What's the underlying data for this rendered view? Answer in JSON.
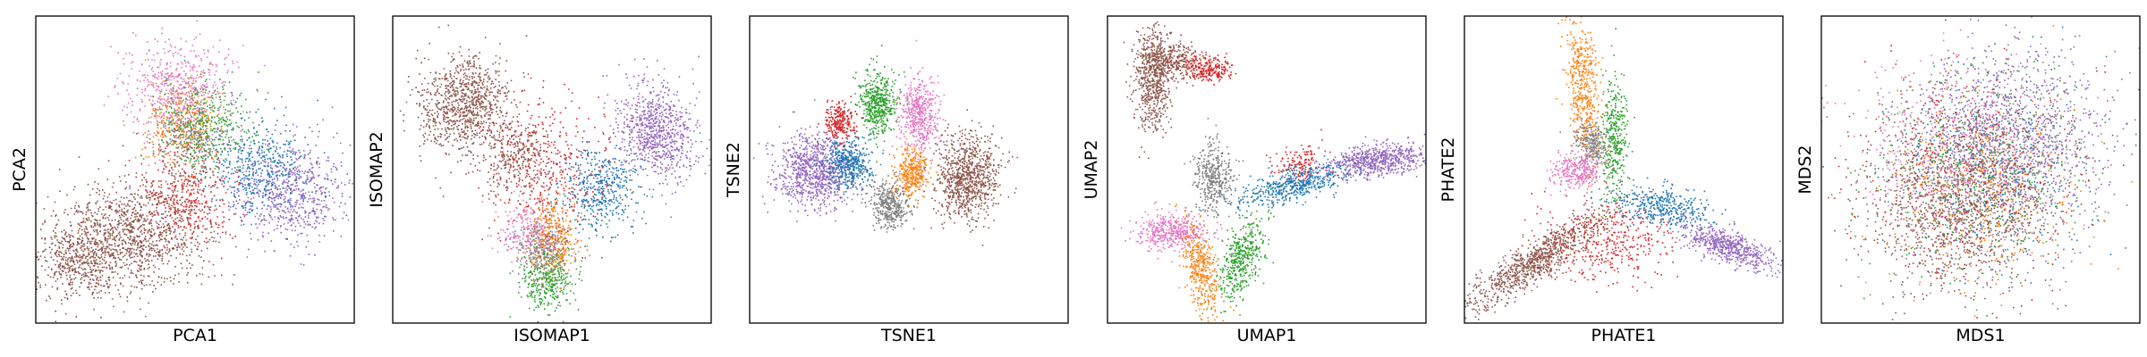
{
  "chart_data": [
    {
      "type": "scatter",
      "xlabel": "PCA1",
      "ylabel": "PCA2",
      "xlim": [
        0,
        100
      ],
      "ylim": [
        0,
        100
      ],
      "grid": false,
      "legend": "none",
      "series": [
        {
          "color": "#8c564b",
          "clusters": [
            {
              "cx": 28,
              "cy": 28,
              "sx": 13,
              "sy": 9,
              "n": 1400,
              "rot": 20
            },
            {
              "cx": 12,
              "cy": 20,
              "sx": 6,
              "sy": 6,
              "n": 250
            }
          ]
        },
        {
          "color": "#e377c2",
          "clusters": [
            {
              "cx": 45,
              "cy": 76,
              "sx": 8,
              "sy": 8,
              "n": 600
            }
          ]
        },
        {
          "color": "#9467bd",
          "clusters": [
            {
              "cx": 80,
              "cy": 43,
              "sx": 9,
              "sy": 8,
              "n": 650,
              "rot": -20
            }
          ]
        },
        {
          "color": "#1f77b4",
          "clusters": [
            {
              "cx": 70,
              "cy": 50,
              "sx": 8,
              "sy": 8,
              "n": 450
            }
          ]
        },
        {
          "color": "#2ca02c",
          "clusters": [
            {
              "cx": 53,
              "cy": 65,
              "sx": 7,
              "sy": 7,
              "n": 400
            }
          ]
        },
        {
          "color": "#d62728",
          "clusters": [
            {
              "cx": 47,
              "cy": 42,
              "sx": 7,
              "sy": 8,
              "n": 350
            }
          ]
        },
        {
          "color": "#ff7f0e",
          "clusters": [
            {
              "cx": 45,
              "cy": 65,
              "sx": 6,
              "sy": 7,
              "n": 300
            }
          ]
        },
        {
          "color": "#7f7f7f",
          "clusters": [
            {
              "cx": 48,
              "cy": 60,
              "sx": 6,
              "sy": 6,
              "n": 250
            }
          ]
        }
      ]
    },
    {
      "type": "scatter",
      "xlabel": "ISOMAP1",
      "ylabel": "ISOMAP2",
      "xlim": [
        0,
        100
      ],
      "ylim": [
        0,
        100
      ],
      "grid": false,
      "legend": "none",
      "series": [
        {
          "color": "#8c564b",
          "clusters": [
            {
              "cx": 22,
              "cy": 72,
              "sx": 7,
              "sy": 8,
              "n": 900,
              "rot": -30
            },
            {
              "cx": 38,
              "cy": 55,
              "sx": 6,
              "sy": 6,
              "n": 300
            }
          ]
        },
        {
          "color": "#9467bd",
          "clusters": [
            {
              "cx": 82,
              "cy": 62,
              "sx": 6,
              "sy": 8,
              "n": 800,
              "rot": 25
            }
          ]
        },
        {
          "color": "#1f77b4",
          "clusters": [
            {
              "cx": 65,
              "cy": 43,
              "sx": 6,
              "sy": 7,
              "n": 450
            }
          ]
        },
        {
          "color": "#2ca02c",
          "clusters": [
            {
              "cx": 48,
              "cy": 15,
              "sx": 4,
              "sy": 5,
              "n": 350
            }
          ]
        },
        {
          "color": "#ff7f0e",
          "clusters": [
            {
              "cx": 50,
              "cy": 28,
              "sx": 4,
              "sy": 6,
              "n": 350
            }
          ]
        },
        {
          "color": "#7f7f7f",
          "clusters": [
            {
              "cx": 47,
              "cy": 24,
              "sx": 4,
              "sy": 5,
              "n": 250
            }
          ]
        },
        {
          "color": "#d62728",
          "clusters": [
            {
              "cx": 48,
              "cy": 50,
              "sx": 10,
              "sy": 11,
              "n": 400
            }
          ]
        },
        {
          "color": "#e377c2",
          "clusters": [
            {
              "cx": 42,
              "cy": 30,
              "sx": 5,
              "sy": 5,
              "n": 200
            }
          ]
        }
      ]
    },
    {
      "type": "scatter",
      "xlabel": "TSNE1",
      "ylabel": "TSNE2",
      "xlim": [
        0,
        100
      ],
      "ylim": [
        0,
        100
      ],
      "grid": false,
      "legend": "none",
      "series": [
        {
          "color": "#9467bd",
          "clusters": [
            {
              "cx": 20,
              "cy": 50,
              "sx": 6,
              "sy": 6,
              "n": 900
            }
          ]
        },
        {
          "color": "#8c564b",
          "clusters": [
            {
              "cx": 68,
              "cy": 48,
              "sx": 5,
              "sy": 7,
              "n": 900
            }
          ]
        },
        {
          "color": "#2ca02c",
          "clusters": [
            {
              "cx": 40,
              "cy": 72,
              "sx": 3,
              "sy": 5,
              "n": 500
            }
          ]
        },
        {
          "color": "#e377c2",
          "clusters": [
            {
              "cx": 53,
              "cy": 68,
              "sx": 3,
              "sy": 6,
              "n": 500
            }
          ]
        },
        {
          "color": "#1f77b4",
          "clusters": [
            {
              "cx": 31,
              "cy": 52,
              "sx": 3.5,
              "sy": 4,
              "n": 450
            }
          ]
        },
        {
          "color": "#7f7f7f",
          "clusters": [
            {
              "cx": 44,
              "cy": 39,
              "sx": 3,
              "sy": 4,
              "n": 400
            }
          ]
        },
        {
          "color": "#ff7f0e",
          "clusters": [
            {
              "cx": 51,
              "cy": 49,
              "sx": 2.5,
              "sy": 4,
              "n": 350
            }
          ]
        },
        {
          "color": "#d62728",
          "clusters": [
            {
              "cx": 28,
              "cy": 66,
              "sx": 2.5,
              "sy": 3,
              "n": 250
            }
          ]
        }
      ]
    },
    {
      "type": "scatter",
      "xlabel": "UMAP1",
      "ylabel": "UMAP2",
      "xlim": [
        0,
        100
      ],
      "ylim": [
        0,
        100
      ],
      "grid": false,
      "legend": "none",
      "series": [
        {
          "color": "#8c564b",
          "clusters": [
            {
              "cx": 14,
              "cy": 80,
              "sx": 3,
              "sy": 9,
              "n": 600
            },
            {
              "cx": 20,
              "cy": 86,
              "sx": 5,
              "sy": 3,
              "n": 300
            }
          ]
        },
        {
          "color": "#d62728",
          "clusters": [
            {
              "cx": 31,
              "cy": 83,
              "sx": 4,
              "sy": 2,
              "n": 250
            },
            {
              "cx": 60,
              "cy": 52,
              "sx": 4,
              "sy": 3,
              "n": 150
            }
          ]
        },
        {
          "color": "#9467bd",
          "clusters": [
            {
              "cx": 85,
              "cy": 53,
              "sx": 8,
              "sy": 2.5,
              "n": 700,
              "rot": 8
            }
          ]
        },
        {
          "color": "#1f77b4",
          "clusters": [
            {
              "cx": 58,
              "cy": 45,
              "sx": 9,
              "sy": 2.5,
              "n": 500,
              "rot": 15
            }
          ]
        },
        {
          "color": "#e377c2",
          "clusters": [
            {
              "cx": 20,
              "cy": 30,
              "sx": 6,
              "sy": 3,
              "n": 450
            }
          ]
        },
        {
          "color": "#7f7f7f",
          "clusters": [
            {
              "cx": 33,
              "cy": 48,
              "sx": 3,
              "sy": 6,
              "n": 400
            }
          ]
        },
        {
          "color": "#2ca02c",
          "clusters": [
            {
              "cx": 42,
              "cy": 22,
              "sx": 3,
              "sy": 8,
              "n": 450,
              "rot": -20
            }
          ]
        },
        {
          "color": "#ff7f0e",
          "clusters": [
            {
              "cx": 29,
              "cy": 18,
              "sx": 2.5,
              "sy": 8,
              "n": 400,
              "rot": 10
            }
          ]
        }
      ]
    },
    {
      "type": "scatter",
      "xlabel": "PHATE1",
      "ylabel": "PHATE2",
      "xlim": [
        0,
        100
      ],
      "ylim": [
        0,
        100
      ],
      "grid": false,
      "legend": "none",
      "series": [
        {
          "color": "#8c564b",
          "clusters": [
            {
              "cx": 22,
              "cy": 20,
              "sx": 13,
              "sy": 3,
              "n": 900,
              "rot": 35
            }
          ]
        },
        {
          "color": "#d62728",
          "clusters": [
            {
              "cx": 45,
              "cy": 28,
              "sx": 10,
              "sy": 7,
              "n": 400
            }
          ]
        },
        {
          "color": "#ff7f0e",
          "clusters": [
            {
              "cx": 37,
              "cy": 78,
              "sx": 2.5,
              "sy": 13,
              "n": 500,
              "rot": 5
            }
          ]
        },
        {
          "color": "#2ca02c",
          "clusters": [
            {
              "cx": 47,
              "cy": 60,
              "sx": 2,
              "sy": 10,
              "n": 350
            }
          ]
        },
        {
          "color": "#7f7f7f",
          "clusters": [
            {
              "cx": 40,
              "cy": 58,
              "sx": 2.5,
              "sy": 4,
              "n": 250
            }
          ]
        },
        {
          "color": "#e377c2",
          "clusters": [
            {
              "cx": 35,
              "cy": 50,
              "sx": 4,
              "sy": 3,
              "n": 300
            }
          ]
        },
        {
          "color": "#1f77b4",
          "clusters": [
            {
              "cx": 62,
              "cy": 38,
              "sx": 8,
              "sy": 3,
              "n": 400,
              "rot": -10
            }
          ]
        },
        {
          "color": "#9467bd",
          "clusters": [
            {
              "cx": 83,
              "cy": 25,
              "sx": 8,
              "sy": 2.5,
              "n": 600,
              "rot": -20
            }
          ]
        }
      ]
    },
    {
      "type": "scatter",
      "xlabel": "MDS1",
      "ylabel": "MDS2",
      "xlim": [
        0,
        100
      ],
      "ylim": [
        0,
        100
      ],
      "grid": false,
      "legend": "none",
      "series": [
        {
          "color": "#9467bd",
          "clusters": [
            {
              "cx": 60,
              "cy": 60,
              "sx": 15,
              "sy": 15,
              "n": 1100
            }
          ]
        },
        {
          "color": "#8c564b",
          "clusters": [
            {
              "cx": 42,
              "cy": 38,
              "sx": 14,
              "sy": 14,
              "n": 1100
            }
          ]
        },
        {
          "color": "#2ca02c",
          "clusters": [
            {
              "cx": 48,
              "cy": 50,
              "sx": 17,
              "sy": 17,
              "n": 450
            }
          ]
        },
        {
          "color": "#1f77b4",
          "clusters": [
            {
              "cx": 55,
              "cy": 52,
              "sx": 16,
              "sy": 16,
              "n": 450
            }
          ]
        },
        {
          "color": "#e377c2",
          "clusters": [
            {
              "cx": 40,
              "cy": 58,
              "sx": 15,
              "sy": 15,
              "n": 450
            }
          ]
        },
        {
          "color": "#d62728",
          "clusters": [
            {
              "cx": 45,
              "cy": 48,
              "sx": 17,
              "sy": 17,
              "n": 450
            }
          ]
        },
        {
          "color": "#ff7f0e",
          "clusters": [
            {
              "cx": 50,
              "cy": 45,
              "sx": 16,
              "sy": 16,
              "n": 400
            }
          ]
        },
        {
          "color": "#7f7f7f",
          "clusters": [
            {
              "cx": 50,
              "cy": 50,
              "sx": 17,
              "sy": 17,
              "n": 350
            }
          ]
        }
      ]
    }
  ]
}
